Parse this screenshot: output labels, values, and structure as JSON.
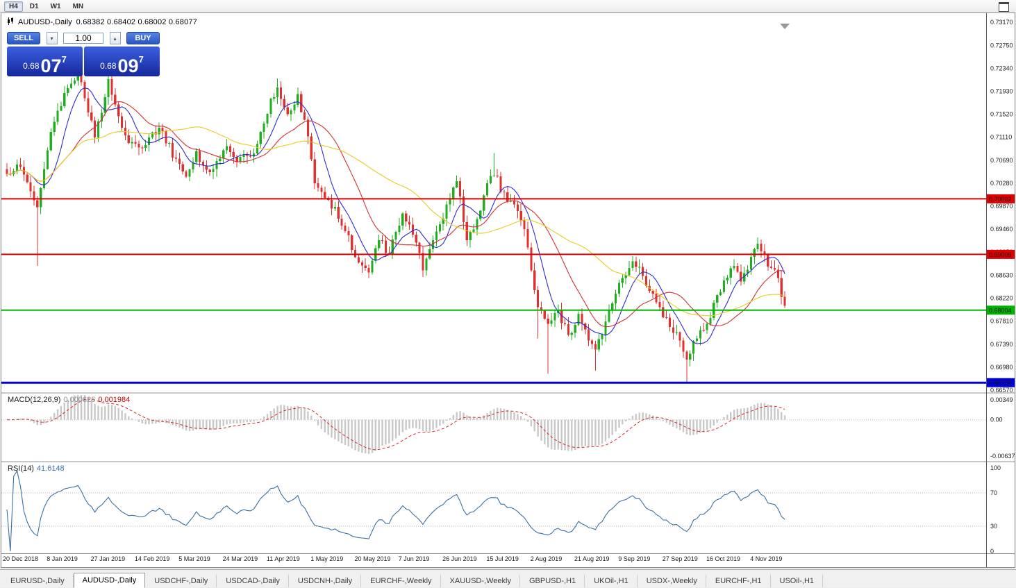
{
  "toolbar": {
    "timeframes": [
      "H4",
      "D1",
      "W1",
      "MN"
    ],
    "active": "H4"
  },
  "chart": {
    "title": {
      "symbol": "AUDUSD-,Daily",
      "ohlc": "0.68382 0.68402 0.68002 0.68077"
    },
    "trade_panel": {
      "sell_label": "SELL",
      "buy_label": "BUY",
      "volume": "1.00",
      "bid": {
        "prefix": "0.68",
        "big": "07",
        "sup": "7"
      },
      "ask": {
        "prefix": "0.68",
        "big": "09",
        "sup": "7"
      }
    },
    "price_scale": {
      "ticks": [
        "0.73170",
        "0.72750",
        "0.72340",
        "0.71930",
        "0.71520",
        "0.71110",
        "0.70690",
        "0.70280",
        "0.69870",
        "0.69460",
        "0.69050",
        "0.68630",
        "0.68220",
        "0.67810",
        "0.67390",
        "0.66980",
        "0.66570"
      ]
    },
    "levels": [
      {
        "price": 0.70002,
        "label": "0.70002",
        "color": "#e00000",
        "width": 2
      },
      {
        "price": 0.69006,
        "label": "0.69006",
        "color": "#e00000",
        "width": 2
      },
      {
        "price": 0.68004,
        "label": "0.68004",
        "color": "#00b400",
        "width": 2
      },
      {
        "price": 0.66705,
        "label": "0.66705",
        "color": "#0000d8",
        "width": 3
      }
    ],
    "date_axis": [
      "20 Dec 2018",
      "8 Jan 2019",
      "27 Jan 2019",
      "14 Feb 2019",
      "5 Mar 2019",
      "24 Mar 2019",
      "11 Apr 2019",
      "1 May 2019",
      "20 May 2019",
      "7 Jun 2019",
      "26 Jun 2019",
      "15 Jul 2019",
      "2 Aug 2019",
      "21 Aug 2019",
      "9 Sep 2019",
      "27 Sep 2019",
      "16 Oct 2019",
      "4 Nov 2019"
    ]
  },
  "indicators": {
    "macd": {
      "name": "MACD(12,26,9)",
      "value_main": "0.000626",
      "value_signal": "0.001984",
      "fast": 12,
      "slow": 26,
      "signal": 9,
      "colors": {
        "histogram": "#c8c8c8",
        "signal": "#dd2222"
      },
      "scale": [
        {
          "v": 0.00349,
          "label": "0.00349"
        },
        {
          "v": 0,
          "label": "0.00"
        },
        {
          "v": -0.00637,
          "label": "-0.00637"
        }
      ]
    },
    "rsi": {
      "name": "RSI(14)",
      "value": "41.6148",
      "period": 14,
      "color": "#3a6ea5",
      "levels": [
        70,
        30
      ],
      "scale": [
        {
          "v": 100,
          "label": "100"
        },
        {
          "v": 70,
          "label": "70"
        },
        {
          "v": 30,
          "label": "30"
        },
        {
          "v": 0,
          "label": "0"
        }
      ]
    }
  },
  "tabs": {
    "items": [
      "EURUSD-,Daily",
      "AUDUSD-,Daily",
      "USDCHF-,Daily",
      "USDCAD-,Daily",
      "USDCNH-,Daily",
      "EURCHF-,Weekly",
      "XAUUSD-,Weekly",
      "GBPUSD-,H1",
      "UKOil-,H1",
      "USDX-,Weekly",
      "EURCHF-,H1",
      "USOil-,H1"
    ],
    "active_index": 1
  },
  "chart_data": {
    "type": "candlestick",
    "symbol": "AUDUSD",
    "timeframe": "Daily",
    "bar_count": 231,
    "bars_per_label": 13,
    "y_range": [
      0.6637,
      0.733
    ],
    "current": {
      "open": 0.68382,
      "high": 0.68402,
      "low": 0.68002,
      "close": 0.68077,
      "bid": 0.68077,
      "ask": 0.68097
    },
    "horizontal_lines": [
      0.70002,
      0.69006,
      0.68004,
      0.66705
    ],
    "colors": {
      "up": "#1fae1f",
      "down": "#e03030"
    },
    "moving_averages": [
      {
        "period": 8,
        "color": "#2a2ad4"
      },
      {
        "period": 20,
        "color": "#d03030"
      },
      {
        "period": 45,
        "color": "#e8cc20"
      }
    ],
    "x_axis_dates": [
      "20 Dec 2018",
      "8 Jan 2019",
      "27 Jan 2019",
      "14 Feb 2019",
      "5 Mar 2019",
      "24 Mar 2019",
      "11 Apr 2019",
      "1 May 2019",
      "20 May 2019",
      "7 Jun 2019",
      "26 Jun 2019",
      "15 Jul 2019",
      "2 Aug 2019",
      "21 Aug 2019",
      "9 Sep 2019",
      "27 Sep 2019",
      "16 Oct 2019",
      "4 Nov 2019"
    ],
    "price_path": [
      [
        0,
        0.7045
      ],
      [
        3,
        0.7062
      ],
      [
        6,
        0.703
      ],
      [
        9,
        0.6985,
        0.688
      ],
      [
        13,
        0.712
      ],
      [
        17,
        0.719
      ],
      [
        21,
        0.7228
      ],
      [
        24,
        0.7155
      ],
      [
        26,
        0.711
      ],
      [
        30,
        0.7215,
        null,
        0.7235
      ],
      [
        33,
        0.7148
      ],
      [
        36,
        0.71
      ],
      [
        39,
        0.7092
      ],
      [
        42,
        0.711
      ],
      [
        45,
        0.7128
      ],
      [
        50,
        0.7072
      ],
      [
        53,
        0.704
      ],
      [
        56,
        0.7086
      ],
      [
        60,
        0.7048
      ],
      [
        65,
        0.7095
      ],
      [
        68,
        0.7066
      ],
      [
        72,
        0.7076
      ],
      [
        75,
        0.712
      ],
      [
        78,
        0.718
      ],
      [
        80,
        0.72,
        null,
        0.7216
      ],
      [
        83,
        0.7152
      ],
      [
        86,
        0.7188
      ],
      [
        89,
        0.7112
      ],
      [
        91,
        0.7028
      ],
      [
        94,
        0.7002
      ],
      [
        97,
        0.6986
      ],
      [
        100,
        0.6942
      ],
      [
        104,
        0.6886
      ],
      [
        107,
        0.6868,
        0.6858
      ],
      [
        110,
        0.6926
      ],
      [
        113,
        0.6902
      ],
      [
        117,
        0.6974
      ],
      [
        120,
        0.6936
      ],
      [
        123,
        0.6872,
        0.6862
      ],
      [
        126,
        0.6926
      ],
      [
        130,
        0.699
      ],
      [
        133,
        0.7032,
        null,
        0.7042
      ],
      [
        136,
        0.6926
      ],
      [
        139,
        0.6964
      ],
      [
        142,
        0.7028
      ],
      [
        144,
        0.7042,
        null,
        0.7082
      ],
      [
        147,
        0.7012
      ],
      [
        150,
        0.699
      ],
      [
        153,
        0.6946
      ],
      [
        155,
        0.6872
      ],
      [
        157,
        0.6806,
        0.675
      ],
      [
        160,
        0.6776,
        0.6686
      ],
      [
        163,
        0.68
      ],
      [
        166,
        0.6756
      ],
      [
        169,
        0.6794
      ],
      [
        172,
        0.6746
      ],
      [
        174,
        0.673,
        0.6692
      ],
      [
        177,
        0.678
      ],
      [
        180,
        0.683
      ],
      [
        182,
        0.6858
      ],
      [
        185,
        0.6888,
        null,
        0.6896
      ],
      [
        188,
        0.6862
      ],
      [
        191,
        0.683
      ],
      [
        194,
        0.6788
      ],
      [
        196,
        0.677
      ],
      [
        199,
        0.6746
      ],
      [
        201,
        0.6712,
        0.6671
      ],
      [
        204,
        0.675
      ],
      [
        207,
        0.6776
      ],
      [
        209,
        0.6814
      ],
      [
        212,
        0.6854
      ],
      [
        215,
        0.688
      ],
      [
        217,
        0.6852
      ],
      [
        220,
        0.6896
      ],
      [
        222,
        0.692,
        null,
        0.6931
      ],
      [
        224,
        0.69
      ],
      [
        226,
        0.6876
      ],
      [
        228,
        0.6858
      ],
      [
        230,
        0.6808
      ]
    ]
  }
}
